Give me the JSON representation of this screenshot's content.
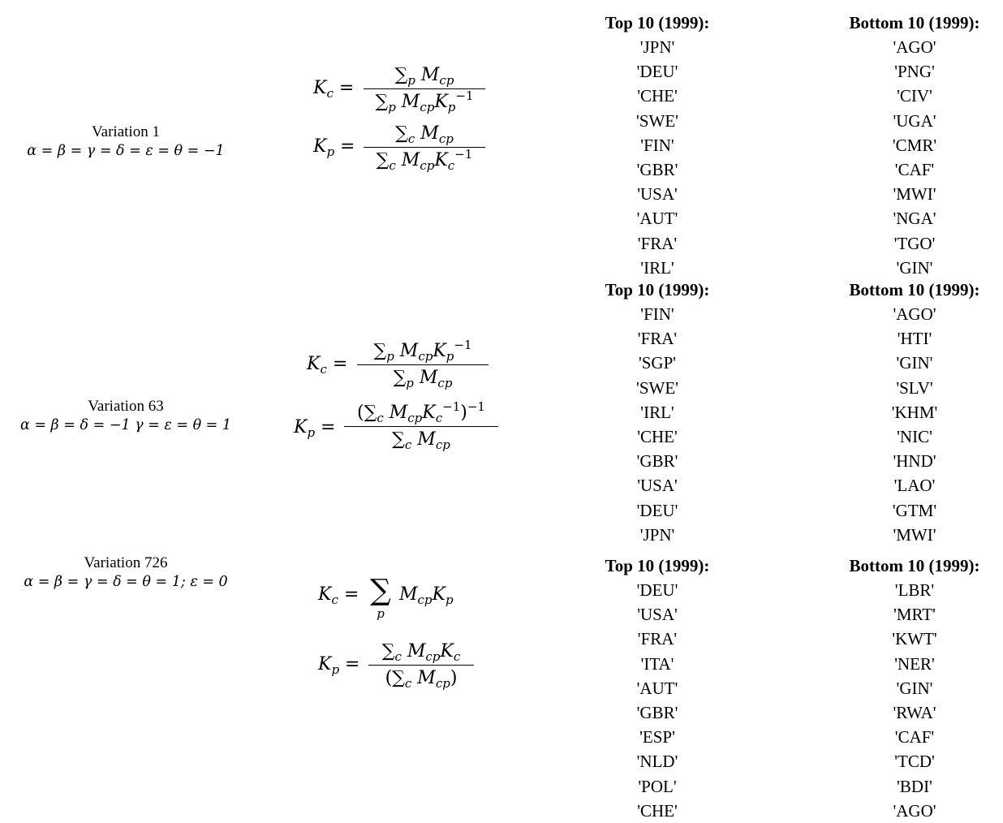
{
  "rows": [
    {
      "variation": "Variation 1",
      "condition": "α = β = γ = δ = ε = θ = −1",
      "top_header": "Top 10 (1999):",
      "bottom_header": "Bottom 10 (1999):",
      "top": [
        "'JPN'",
        "'DEU'",
        "'CHE'",
        "'SWE'",
        "'FIN'",
        "'GBR'",
        "'USA'",
        "'AUT'",
        "'FRA'",
        "'IRL'"
      ],
      "bottom": [
        "'AGO'",
        "'PNG'",
        "'CIV'",
        "'UGA'",
        "'CMR'",
        "'CAF'",
        "'MWI'",
        "'NGA'",
        "'TGO'",
        "'GIN'"
      ]
    },
    {
      "variation": "Variation 63",
      "condition": "α = β = δ = −1  γ = ε = θ = 1",
      "top_header": "Top 10 (1999):",
      "bottom_header": "Bottom 10 (1999):",
      "top": [
        "'FIN'",
        "'FRA'",
        "'SGP'",
        "'SWE'",
        "'IRL'",
        "'CHE'",
        "'GBR'",
        "'USA'",
        "'DEU'",
        "'JPN'"
      ],
      "bottom": [
        "'AGO'",
        "'HTI'",
        "'GIN'",
        "'SLV'",
        "'KHM'",
        "'NIC'",
        "'HND'",
        "'LAO'",
        "'GTM'",
        "'MWI'"
      ]
    },
    {
      "variation": "Variation 726",
      "condition": "α = β = γ = δ = θ = 1;  ε = 0",
      "top_header": "Top 10 (1999):",
      "bottom_header": "Bottom 10 (1999):",
      "top": [
        "'DEU'",
        "'USA'",
        "'FRA'",
        "'ITA'",
        "'AUT'",
        "'GBR'",
        "'ESP'",
        "'NLD'",
        "'POL'",
        "'CHE'"
      ],
      "bottom": [
        "'LBR'",
        "'MRT'",
        "'KWT'",
        "'NER'",
        "'GIN'",
        "'RWA'",
        "'CAF'",
        "'TCD'",
        "'BDI'",
        "'AGO'"
      ]
    }
  ]
}
